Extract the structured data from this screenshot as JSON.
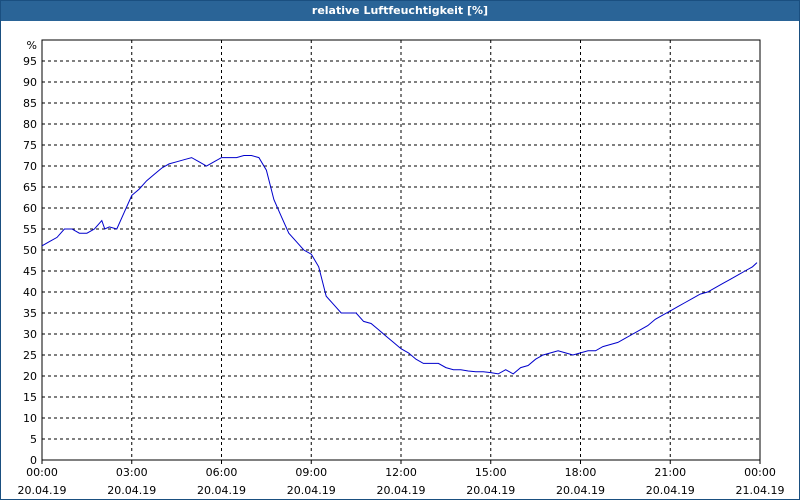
{
  "window": {
    "title": "relative Luftfeuchtigkeit [%]"
  },
  "chart_data": {
    "type": "line",
    "title": "relative Luftfeuchtigkeit [%]",
    "ylabel": "%",
    "xlabel": "",
    "ylim": [
      0,
      100
    ],
    "xlim": [
      0,
      24
    ],
    "yticks": [
      0,
      5,
      10,
      15,
      20,
      25,
      30,
      35,
      40,
      45,
      50,
      55,
      60,
      65,
      70,
      75,
      80,
      85,
      90,
      95
    ],
    "xticks": [
      {
        "time": "00:00",
        "date": "20.04.19"
      },
      {
        "time": "03:00",
        "date": "20.04.19"
      },
      {
        "time": "06:00",
        "date": "20.04.19"
      },
      {
        "time": "09:00",
        "date": "20.04.19"
      },
      {
        "time": "12:00",
        "date": "20.04.19"
      },
      {
        "time": "15:00",
        "date": "20.04.19"
      },
      {
        "time": "18:00",
        "date": "20.04.19"
      },
      {
        "time": "21:00",
        "date": "20.04.19"
      },
      {
        "time": "00:00",
        "date": "21.04.19"
      }
    ],
    "grid": true,
    "line_color": "#0000cc",
    "series": [
      {
        "x": [
          0,
          0.25,
          0.5,
          0.75,
          1.0,
          1.25,
          1.5,
          1.75,
          2.0,
          2.1,
          2.25,
          2.5,
          2.75,
          3.0,
          3.25,
          3.5,
          3.75,
          4.0,
          4.25,
          4.5,
          4.75,
          5.0,
          5.25,
          5.5,
          5.75,
          6.0,
          6.25,
          6.5,
          6.75,
          7.0,
          7.25,
          7.5,
          7.75,
          8.0,
          8.25,
          8.5,
          8.75,
          9.0,
          9.25,
          9.5,
          9.75,
          10.0,
          10.25,
          10.5,
          10.75,
          11.0,
          11.25,
          11.5,
          11.75,
          12.0,
          12.25,
          12.5,
          12.75,
          13.0,
          13.25,
          13.5,
          13.75,
          14.0,
          14.25,
          14.5,
          14.75,
          15.0,
          15.25,
          15.5,
          15.75,
          16.0,
          16.25,
          16.5,
          16.75,
          17.0,
          17.25,
          17.5,
          17.75,
          18.0,
          18.25,
          18.5,
          18.75,
          19.0,
          19.25,
          19.5,
          19.75,
          20.0,
          20.25,
          20.5,
          20.75,
          21.0,
          21.25,
          21.5,
          21.75,
          22.0,
          22.25,
          22.5,
          22.75,
          23.0,
          23.25,
          23.5,
          23.75,
          23.9
        ],
        "values": [
          51,
          52,
          53,
          55,
          55,
          54,
          54,
          55,
          57,
          55,
          55.5,
          55,
          59,
          63,
          64.5,
          66.5,
          68,
          69.5,
          70.5,
          71,
          71.5,
          72,
          71,
          70,
          71,
          72,
          72,
          72,
          72.5,
          72.5,
          72,
          69,
          62,
          58,
          54,
          52,
          50,
          49,
          46,
          39,
          37,
          35,
          35,
          35,
          33,
          32.5,
          31,
          29.5,
          28,
          26.5,
          25.5,
          24,
          23,
          23,
          23,
          22,
          21.5,
          21.5,
          21.2,
          21,
          21,
          20.8,
          20.5,
          21.5,
          20.5,
          22,
          22.5,
          24,
          25,
          25.5,
          26,
          25.5,
          25,
          25.5,
          26,
          26,
          27,
          27.5,
          28,
          29,
          30,
          31,
          32,
          33.5,
          34.5,
          35.5,
          36.5,
          37.5,
          38.5,
          39.5,
          40,
          41,
          42,
          43,
          44,
          45,
          46,
          47
        ]
      }
    ]
  }
}
